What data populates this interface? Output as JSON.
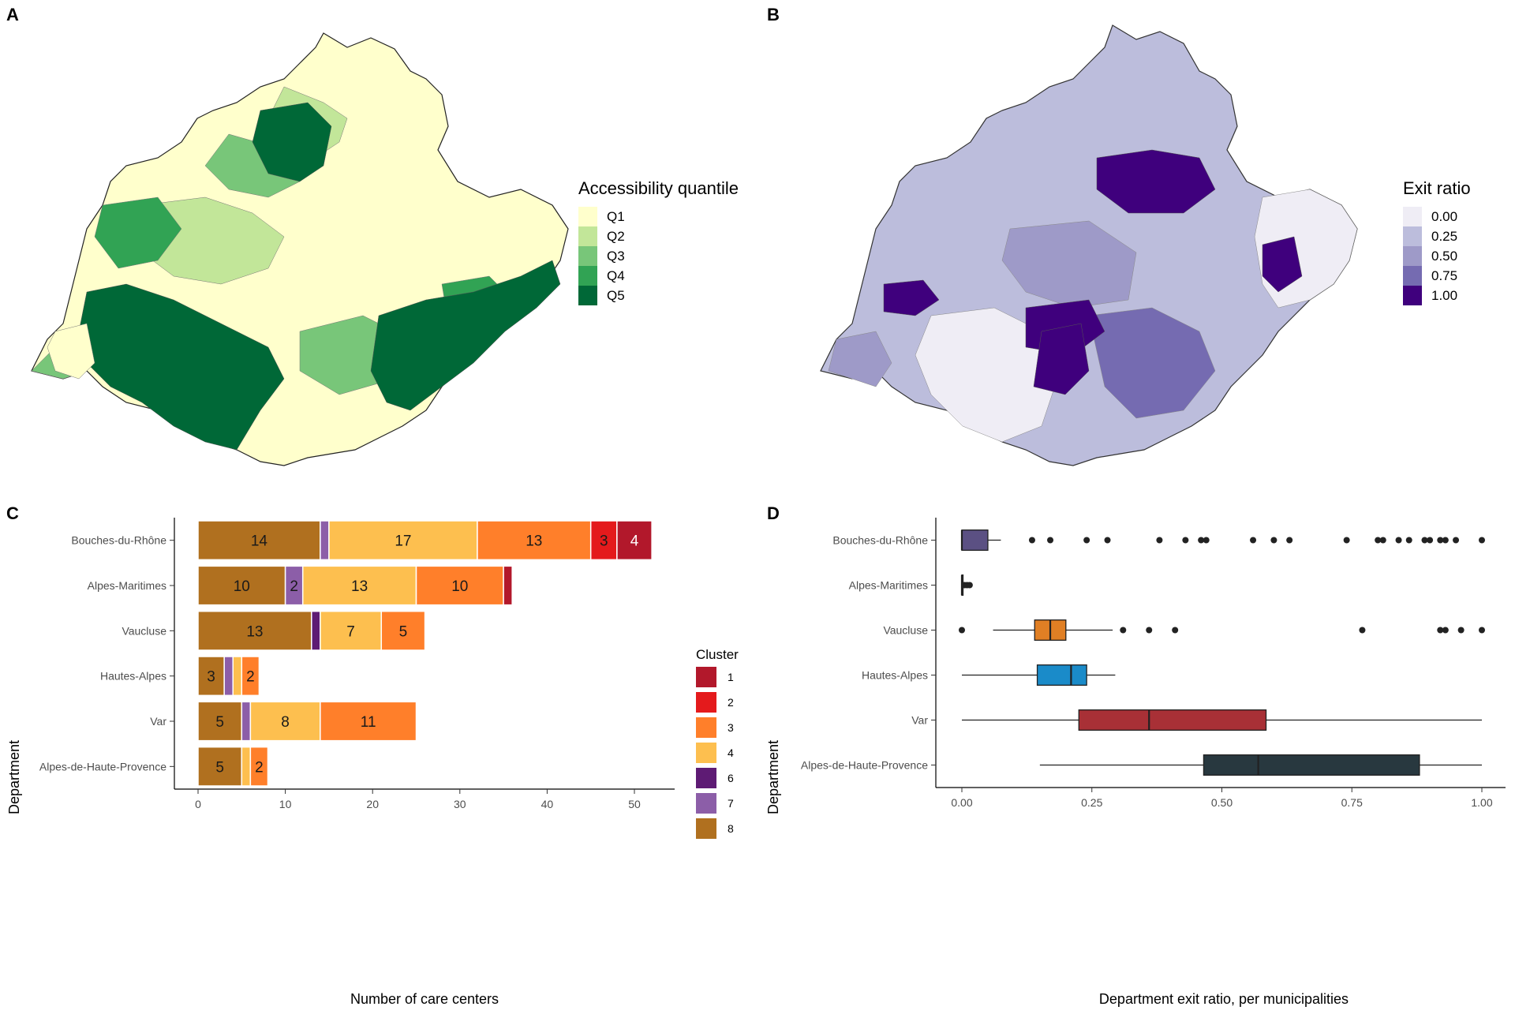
{
  "panels": {
    "a": {
      "label": "A"
    },
    "b": {
      "label": "B"
    },
    "c": {
      "label": "C"
    },
    "d": {
      "label": "D"
    }
  },
  "colors": {
    "q": [
      "#ffffcc",
      "#c2e699",
      "#78c679",
      "#31a354",
      "#006837"
    ],
    "exit": [
      "#efedf5",
      "#bcbddc",
      "#9e9ac8",
      "#756bb1",
      "#3f007d"
    ],
    "cluster": {
      "1": "#b2182b",
      "2": "#e41a1c",
      "3": "#ff7f2a",
      "4": "#fdbf4f",
      "6": "#5e1b74",
      "7": "#8c5ea8",
      "8": "#b0701f"
    },
    "box": [
      "#5b5083",
      "#3d3d3d",
      "#e07f24",
      "#1a8bc9",
      "#a83036",
      "#28383f"
    ]
  },
  "chart_data": [
    {
      "type": "choropleth",
      "legend_title": "Accessibility quantile",
      "legend": [
        "Q1",
        "Q2",
        "Q3",
        "Q4",
        "Q5"
      ]
    },
    {
      "type": "choropleth",
      "legend_title": "Exit ratio",
      "legend": [
        "0.00",
        "0.25",
        "0.50",
        "0.75",
        "1.00"
      ]
    },
    {
      "type": "bar",
      "orientation": "horizontal",
      "stacked": true,
      "xlabel": "Number of care centers",
      "ylabel": "Department",
      "xlim": [
        0,
        54
      ],
      "xticks": [
        "0",
        "10",
        "20",
        "30",
        "40",
        "50"
      ],
      "legend_title": "Cluster",
      "legend": [
        "1",
        "2",
        "3",
        "4",
        "6",
        "7",
        "8"
      ],
      "stack_order": [
        "8",
        "7",
        "6",
        "4",
        "3",
        "2",
        "1"
      ],
      "categories": [
        "Bouches-du-Rhône",
        "Alpes-Maritimes",
        "Vaucluse",
        "Hautes-Alpes",
        "Var",
        "Alpes-de-Haute-Provence"
      ],
      "series": [
        {
          "name": "8",
          "values": [
            14,
            10,
            13,
            3,
            5,
            5
          ]
        },
        {
          "name": "7",
          "values": [
            1,
            2,
            0,
            1,
            1,
            0
          ]
        },
        {
          "name": "6",
          "values": [
            0,
            0,
            1,
            0,
            0,
            0
          ]
        },
        {
          "name": "4",
          "values": [
            17,
            13,
            7,
            1,
            8,
            1
          ]
        },
        {
          "name": "3",
          "values": [
            13,
            10,
            5,
            2,
            11,
            2
          ]
        },
        {
          "name": "2",
          "values": [
            3,
            0,
            0,
            0,
            0,
            0
          ]
        },
        {
          "name": "1",
          "values": [
            4,
            1,
            0,
            0,
            0,
            0
          ]
        }
      ]
    },
    {
      "type": "box",
      "orientation": "horizontal",
      "xlabel": "Department exit ratio, per municipalities",
      "ylabel": "Department",
      "xlim": [
        -0.04,
        1.04
      ],
      "xticks": [
        "0.00",
        "0.25",
        "0.50",
        "0.75",
        "1.00"
      ],
      "categories": [
        "Bouches-du-Rhône",
        "Alpes-Maritimes",
        "Vaucluse",
        "Hautes-Alpes",
        "Var",
        "Alpes-de-Haute-Provence"
      ],
      "boxes": [
        {
          "min": 0.0,
          "q1": 0.0,
          "median": 0.0,
          "q3": 0.05,
          "max": 0.075,
          "outliers": [
            0.135,
            0.17,
            0.24,
            0.28,
            0.38,
            0.43,
            0.46,
            0.47,
            0.56,
            0.6,
            0.63,
            0.74,
            0.8,
            0.81,
            0.84,
            0.86,
            0.89,
            0.9,
            0.92,
            0.93,
            0.95,
            1.0
          ]
        },
        {
          "min": 0.0,
          "q1": 0.0,
          "median": 0.0,
          "q3": 0.0,
          "max": 0.0,
          "outliers": [
            0.005,
            0.01,
            0.015
          ]
        },
        {
          "min": 0.06,
          "q1": 0.14,
          "median": 0.17,
          "q3": 0.2,
          "max": 0.29,
          "outliers": [
            0.0,
            0.31,
            0.36,
            0.41,
            0.77,
            0.92,
            0.93,
            0.96,
            1.0
          ]
        },
        {
          "min": 0.0,
          "q1": 0.145,
          "median": 0.21,
          "q3": 0.24,
          "max": 0.295,
          "outliers": []
        },
        {
          "min": 0.0,
          "q1": 0.225,
          "median": 0.36,
          "q3": 0.585,
          "max": 1.0,
          "outliers": []
        },
        {
          "min": 0.15,
          "q1": 0.465,
          "median": 0.57,
          "q3": 0.88,
          "max": 1.0,
          "outliers": []
        }
      ]
    }
  ]
}
